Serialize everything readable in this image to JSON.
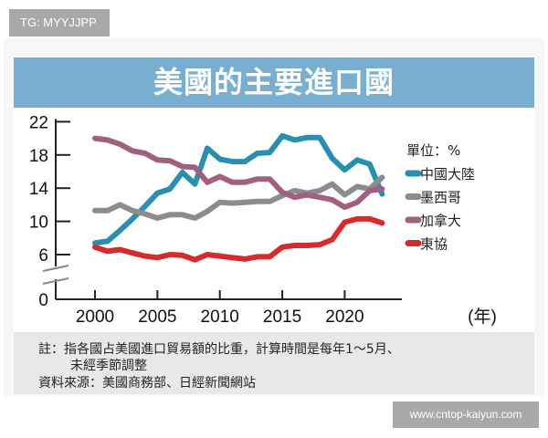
{
  "watermark_top": "TG: MYYJJPP",
  "watermark_bottom": "www.cntop-kaiyun.com",
  "chart_data": {
    "type": "line",
    "title": "美國的主要進口國",
    "unit_label": "單位：%",
    "xlabel": "(年)",
    "x": [
      2000,
      2001,
      2002,
      2003,
      2004,
      2005,
      2006,
      2007,
      2008,
      2009,
      2010,
      2011,
      2012,
      2013,
      2014,
      2015,
      2016,
      2017,
      2018,
      2019,
      2020,
      2021,
      2022,
      2023
    ],
    "xticks": [
      2000,
      2005,
      2010,
      2015,
      2020
    ],
    "yticks": [
      0,
      6,
      10,
      14,
      18,
      22
    ],
    "ylim": [
      0,
      22
    ],
    "y_axis_break": [
      0,
      6
    ],
    "legend_placement": "right",
    "series": [
      {
        "name": "中國大陸",
        "color": "#2a8fae",
        "values": [
          7.4,
          7.6,
          8.9,
          10.3,
          11.8,
          13.4,
          13.9,
          15.9,
          14.5,
          18.8,
          17.5,
          17.2,
          17.2,
          18.2,
          18.3,
          20.3,
          19.8,
          20.1,
          20.1,
          17.6,
          16.2,
          17.4,
          16.9,
          13.3
        ]
      },
      {
        "name": "墨西哥",
        "color": "#8c8c8c",
        "values": [
          11.3,
          11.3,
          12.0,
          11.3,
          10.9,
          10.4,
          10.8,
          10.8,
          10.4,
          11.2,
          12.3,
          12.2,
          12.3,
          12.4,
          12.4,
          13.1,
          13.7,
          13.4,
          13.7,
          14.5,
          13.2,
          14.2,
          13.9,
          15.3
        ]
      },
      {
        "name": "加拿大",
        "color": "#a2607f",
        "values": [
          20.0,
          19.8,
          19.3,
          18.5,
          18.2,
          17.4,
          17.3,
          16.6,
          16.5,
          14.7,
          15.4,
          14.7,
          14.7,
          15.1,
          15.1,
          13.5,
          12.9,
          13.2,
          12.9,
          12.6,
          11.7,
          12.3,
          13.7,
          13.9
        ]
      },
      {
        "name": "東協",
        "color": "#d62b2b",
        "values": [
          6.9,
          6.4,
          6.6,
          6.2,
          5.8,
          5.6,
          6.0,
          5.9,
          5.3,
          6.0,
          5.8,
          5.6,
          5.4,
          5.7,
          5.7,
          6.9,
          7.1,
          7.1,
          7.2,
          7.8,
          9.9,
          10.3,
          10.3,
          9.8
        ]
      }
    ]
  },
  "notes": {
    "line1": "註：指各國占美國進口貿易額的比重，計算時間是每年1～5月、",
    "line2": "未經季節調整",
    "source": "資料來源：美國商務部、日經新聞網站"
  }
}
